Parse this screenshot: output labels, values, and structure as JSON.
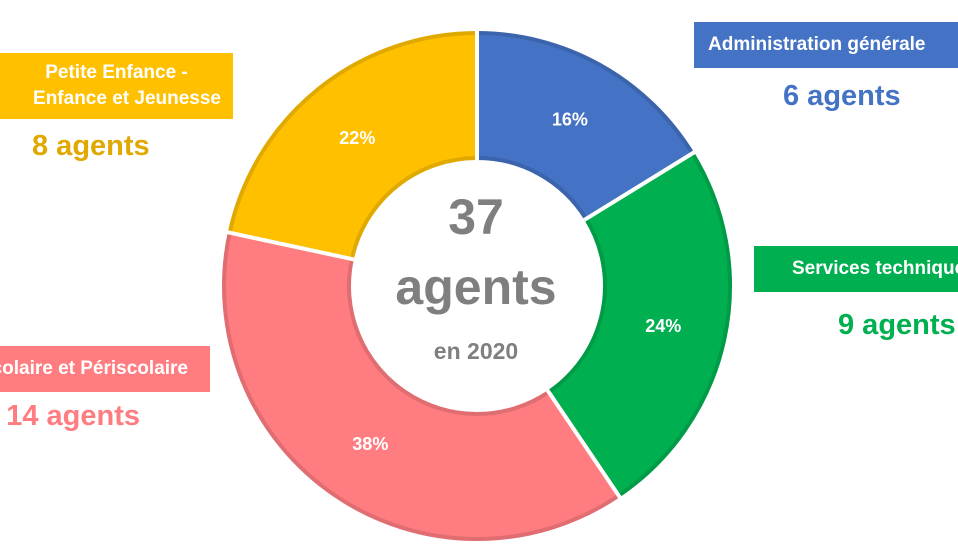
{
  "chart_data": {
    "type": "pie",
    "style": "donut",
    "center": {
      "total": "37",
      "unit": "agents",
      "year_label": "en 2020"
    },
    "slices": [
      {
        "category": "Administration générale",
        "percent_label": "16%",
        "value": 6,
        "count_label": "6 agents",
        "color": "#4472C4"
      },
      {
        "category": "Services techniques",
        "percent_label": "24%",
        "value": 9,
        "count_label": "9 agents",
        "color": "#00B050"
      },
      {
        "category": "Scolaire et Périscolaire",
        "percent_label": "38%",
        "value": 14,
        "count_label": "14 agents",
        "color": "#FF7C80"
      },
      {
        "category_lines": [
          "Petite Enfance -",
          "Enfance et Jeunesse"
        ],
        "percent_label": "22%",
        "value": 8,
        "count_label": "8 agents",
        "color": "#FFC000"
      }
    ]
  }
}
